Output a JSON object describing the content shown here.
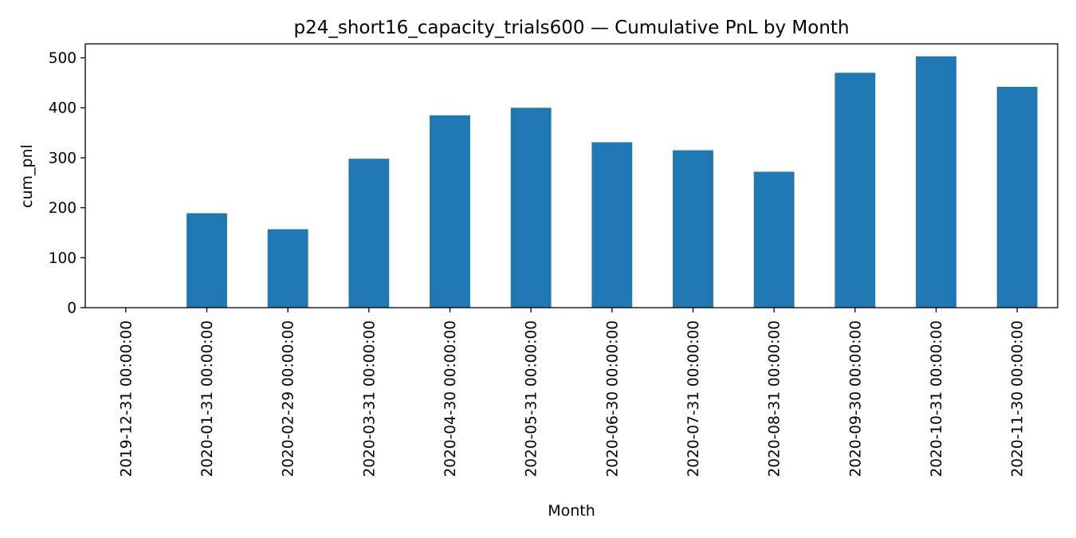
{
  "chart_data": {
    "type": "bar",
    "title": "p24_short16_capacity_trials600 — Cumulative PnL by Month",
    "xlabel": "Month",
    "ylabel": "cum_pnl",
    "categories": [
      "2019-12-31 00:00:00",
      "2020-01-31 00:00:00",
      "2020-02-29 00:00:00",
      "2020-03-31 00:00:00",
      "2020-04-30 00:00:00",
      "2020-05-31 00:00:00",
      "2020-06-30 00:00:00",
      "2020-07-31 00:00:00",
      "2020-08-31 00:00:00",
      "2020-09-30 00:00:00",
      "2020-10-31 00:00:00",
      "2020-11-30 00:00:00"
    ],
    "values": [
      0,
      189,
      157,
      298,
      385,
      400,
      331,
      315,
      272,
      470,
      503,
      442
    ],
    "ylim": [
      0,
      528
    ],
    "yticks": [
      0,
      100,
      200,
      300,
      400,
      500
    ],
    "grid": false,
    "legend": "none",
    "colors": {
      "bar": "#1f77b4"
    }
  }
}
